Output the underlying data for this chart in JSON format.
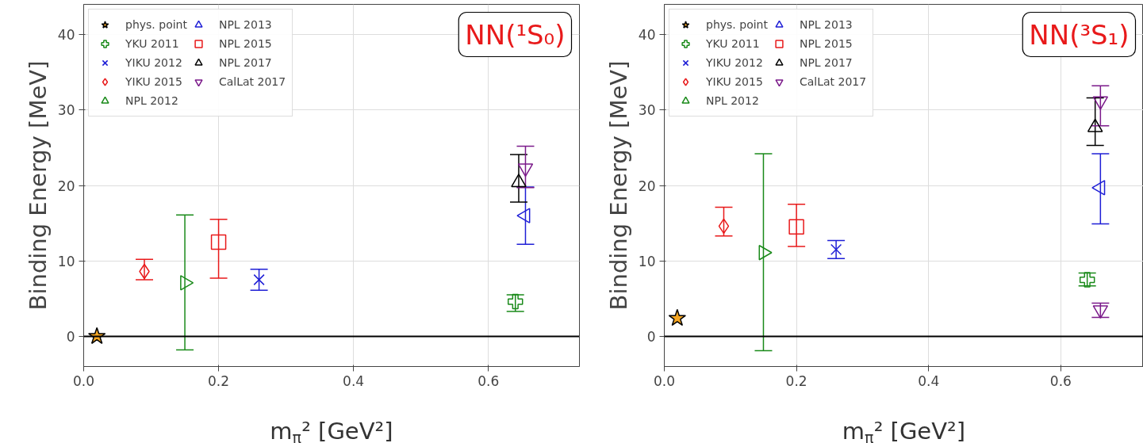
{
  "chart_data": [
    {
      "type": "scatter",
      "xlabel": "m$_{π}$² [GeV²]",
      "ylabel": "Binding Energy [MeV]",
      "xlim": [
        0,
        0.735
      ],
      "ylim": [
        -4,
        44
      ],
      "xticks": [
        {
          "value": 0,
          "label": "0.0"
        },
        0.2,
        0.4,
        0.6
      ],
      "yticks": [
        0,
        10,
        20,
        30,
        40
      ],
      "grid": true,
      "legend": "top left",
      "annotations": [
        "NN(¹S₀)"
      ],
      "ref_lines": [
        {
          "axis": "y",
          "value": 0,
          "color": "#000000"
        }
      ],
      "series": [
        {
          "name": "phys. point",
          "color": "#f5a623",
          "marker": "star",
          "x": [
            0.0196
          ],
          "values": [
            0
          ]
        },
        {
          "name": "YKU 2011",
          "color": "#1a8a1a",
          "marker": "cross",
          "x": [
            0.64
          ],
          "values": [
            4.6
          ],
          "errors": [
            [
              3.3,
              5.5
            ]
          ]
        },
        {
          "name": "YIKU 2012",
          "color": "#1f1fd6",
          "marker": "x",
          "x": [
            0.26
          ],
          "values": [
            7.5
          ],
          "errors": [
            [
              6.1,
              8.9
            ]
          ]
        },
        {
          "name": "YIKU 2015",
          "color": "#e8191a",
          "marker": "diamond",
          "x": [
            0.09
          ],
          "values": [
            8.6
          ],
          "errors": [
            [
              7.5,
              10.2
            ]
          ]
        },
        {
          "name": "NPL 2012",
          "color": "#1a8a1a",
          "marker": "triangle_right",
          "x": [
            0.15
          ],
          "values": [
            7.1
          ],
          "errors": [
            [
              -1.8,
              16.1
            ]
          ]
        },
        {
          "name": "NPL 2013",
          "color": "#1f1fd6",
          "marker": "triangle_left",
          "x": [
            0.655
          ],
          "values": [
            16.0
          ],
          "errors": [
            [
              12.2,
              19.8
            ]
          ]
        },
        {
          "name": "NPL 2015",
          "color": "#e8191a",
          "marker": "square",
          "x": [
            0.2
          ],
          "values": [
            12.5
          ],
          "errors": [
            [
              7.7,
              15.5
            ]
          ]
        },
        {
          "name": "NPL 2017",
          "color": "#000000",
          "marker": "triangle",
          "x": [
            0.645
          ],
          "values": [
            20.4
          ],
          "errors": [
            [
              17.8,
              24.1
            ]
          ]
        },
        {
          "name": "CalLat 2017",
          "color": "#7b1a8a",
          "marker": "triangle_down",
          "x": [
            0.655
          ],
          "values": [
            22.3
          ],
          "errors": [
            [
              19.7,
              25.2
            ]
          ]
        }
      ]
    },
    {
      "type": "scatter",
      "xlabel": "m$_{π}$² [GeV²]",
      "ylabel": "Binding Energy [MeV]",
      "xlim": [
        0,
        0.725
      ],
      "ylim": [
        -4,
        44
      ],
      "xticks": [
        {
          "value": 0,
          "label": "0.0"
        },
        0.2,
        0.4,
        0.6
      ],
      "yticks": [
        0,
        10,
        20,
        30,
        40
      ],
      "grid": true,
      "legend": "top left",
      "annotations": [
        "NN(³S₁)"
      ],
      "ref_lines": [
        {
          "axis": "y",
          "value": 0,
          "color": "#000000"
        }
      ],
      "series": [
        {
          "name": "phys. point",
          "color": "#f5a623",
          "marker": "star",
          "x": [
            0.0196
          ],
          "values": [
            2.4
          ]
        },
        {
          "name": "YKU 2011",
          "color": "#1a8a1a",
          "marker": "cross",
          "x": [
            0.64
          ],
          "values": [
            7.5
          ],
          "errors": [
            [
              6.7,
              8.4
            ]
          ]
        },
        {
          "name": "YIKU 2012",
          "color": "#1f1fd6",
          "marker": "x",
          "x": [
            0.26
          ],
          "values": [
            11.5
          ],
          "errors": [
            [
              10.3,
              12.7
            ]
          ]
        },
        {
          "name": "YIKU 2015",
          "color": "#e8191a",
          "marker": "diamond",
          "x": [
            0.09
          ],
          "values": [
            14.6
          ],
          "errors": [
            [
              13.3,
              17.1
            ]
          ]
        },
        {
          "name": "NPL 2012",
          "color": "#1a8a1a",
          "marker": "triangle_right",
          "x": [
            0.15
          ],
          "values": [
            11.1
          ],
          "errors": [
            [
              -1.9,
              24.2
            ]
          ]
        },
        {
          "name": "NPL 2013",
          "color": "#1f1fd6",
          "marker": "triangle_left",
          "x": [
            0.66
          ],
          "values": [
            19.7
          ],
          "errors": [
            [
              14.9,
              24.2
            ]
          ]
        },
        {
          "name": "NPL 2015",
          "color": "#e8191a",
          "marker": "square",
          "x": [
            0.2
          ],
          "values": [
            14.5
          ],
          "errors": [
            [
              11.9,
              17.5
            ]
          ]
        },
        {
          "name": "NPL 2017",
          "color": "#000000",
          "marker": "triangle",
          "x": [
            0.652
          ],
          "values": [
            27.7
          ],
          "errors": [
            [
              25.3,
              31.6
            ]
          ]
        },
        {
          "name": "CalLat 2017",
          "color": "#7b1a8a",
          "marker": "triangle_down",
          "x": [
            0.66,
            0.66
          ],
          "values": [
            31.2,
            3.5
          ],
          "errors": [
            [
              27.9,
              33.2
            ],
            [
              2.5,
              4.4
            ]
          ]
        }
      ]
    }
  ]
}
